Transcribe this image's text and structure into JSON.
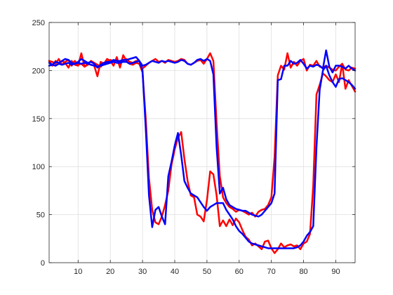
{
  "chart_data": {
    "type": "line",
    "title": "",
    "xlabel": "",
    "ylabel": "",
    "xlim": [
      1,
      96
    ],
    "ylim": [
      0,
      250
    ],
    "xticks": [
      10,
      20,
      30,
      40,
      50,
      60,
      70,
      80,
      90
    ],
    "yticks": [
      0,
      50,
      100,
      150,
      200,
      250
    ],
    "grid": true,
    "series": [
      {
        "color": "#ff0000",
        "x": [
          1,
          2,
          3,
          4,
          5,
          6,
          7,
          8,
          9,
          10,
          11,
          12,
          13,
          14,
          15,
          16,
          17,
          18,
          19,
          20,
          21,
          22,
          23,
          24,
          25,
          26,
          27,
          28,
          29,
          30,
          31,
          32,
          33,
          34,
          35,
          36,
          37,
          38,
          39,
          40,
          41,
          42,
          43,
          44,
          45,
          46,
          47,
          48,
          49,
          50,
          51,
          52,
          53,
          54,
          55,
          56,
          57,
          58,
          59,
          60,
          61,
          62,
          63,
          64,
          65,
          66,
          67,
          68,
          69,
          70,
          71,
          72,
          73,
          74,
          75,
          76,
          77,
          78,
          79,
          80,
          81,
          82,
          83,
          84,
          85,
          86,
          87,
          88,
          89,
          90,
          91,
          92,
          93,
          94,
          95,
          96
        ],
        "y": [
          210,
          205,
          210,
          207,
          210,
          208,
          203,
          210,
          206,
          205,
          218,
          204,
          207,
          206,
          205,
          194,
          209,
          207,
          212,
          210,
          205,
          214,
          203,
          216,
          210,
          207,
          206,
          208,
          207,
          198,
          150,
          88,
          55,
          42,
          40,
          48,
          60,
          75,
          102,
          118,
          130,
          136,
          108,
          85,
          70,
          68,
          50,
          48,
          43,
          65,
          95,
          92,
          70,
          38,
          44,
          38,
          45,
          39,
          46,
          42,
          34,
          27,
          24,
          18,
          20,
          17,
          14,
          22,
          23,
          15,
          10,
          14,
          20,
          16,
          18,
          19,
          17,
          18,
          14,
          20,
          22,
          30,
          80,
          175,
          185,
          197,
          194,
          190,
          188,
          196,
          188,
          207,
          181,
          190,
          184,
          178
        ]
      },
      {
        "color": "#ff0000",
        "x": [
          1,
          2,
          3,
          4,
          5,
          6,
          7,
          8,
          9,
          10,
          11,
          12,
          13,
          14,
          15,
          16,
          17,
          18,
          19,
          20,
          21,
          22,
          23,
          24,
          25,
          26,
          27,
          28,
          29,
          30,
          31,
          32,
          33,
          34,
          35,
          36,
          37,
          38,
          39,
          40,
          41,
          42,
          43,
          44,
          45,
          46,
          47,
          48,
          49,
          50,
          51,
          52,
          53,
          54,
          55,
          56,
          57,
          58,
          59,
          60,
          61,
          62,
          63,
          64,
          65,
          66,
          67,
          68,
          69,
          70,
          71,
          72,
          73,
          74,
          75,
          76,
          77,
          78,
          79,
          80,
          81,
          82,
          83,
          84,
          85,
          86,
          87,
          88,
          89,
          90,
          91,
          92,
          93,
          94,
          95,
          96
        ],
        "y": [
          210,
          209,
          207,
          212,
          206,
          209,
          211,
          205,
          210,
          206,
          207,
          204,
          206,
          210,
          208,
          206,
          204,
          207,
          209,
          211,
          210,
          211,
          209,
          210,
          212,
          209,
          208,
          210,
          210,
          202,
          205,
          208,
          210,
          212,
          209,
          210,
          208,
          211,
          210,
          209,
          210,
          212,
          211,
          207,
          206,
          208,
          210,
          211,
          207,
          212,
          218,
          210,
          145,
          90,
          68,
          62,
          58,
          56,
          53,
          55,
          54,
          52,
          50,
          52,
          48,
          53,
          55,
          56,
          60,
          68,
          110,
          195,
          205,
          201,
          218,
          203,
          209,
          205,
          210,
          212,
          200,
          206,
          205,
          210,
          204,
          203,
          205,
          203,
          201,
          200,
          204,
          207,
          201,
          200,
          203,
          202
        ]
      },
      {
        "color": "#0000ff",
        "x": [
          1,
          2,
          3,
          4,
          5,
          6,
          7,
          8,
          9,
          10,
          11,
          12,
          13,
          14,
          15,
          16,
          17,
          18,
          19,
          20,
          21,
          22,
          23,
          24,
          25,
          26,
          27,
          28,
          29,
          30,
          31,
          32,
          33,
          34,
          35,
          36,
          37,
          38,
          39,
          40,
          41,
          42,
          43,
          44,
          45,
          46,
          47,
          48,
          49,
          50,
          51,
          52,
          53,
          54,
          55,
          56,
          57,
          58,
          59,
          60,
          61,
          62,
          63,
          64,
          65,
          66,
          67,
          68,
          69,
          70,
          71,
          72,
          73,
          74,
          75,
          76,
          77,
          78,
          79,
          80,
          81,
          82,
          83,
          84,
          85,
          86,
          87,
          88,
          89,
          90,
          91,
          92,
          93,
          94,
          95,
          96
        ],
        "y": [
          208,
          206,
          209,
          208,
          210,
          212,
          211,
          208,
          207,
          209,
          212,
          210,
          208,
          209,
          207,
          203,
          206,
          208,
          209,
          209,
          211,
          210,
          210,
          211,
          211,
          212,
          213,
          214,
          210,
          200,
          140,
          70,
          37,
          55,
          58,
          48,
          40,
          90,
          105,
          122,
          135,
          112,
          85,
          78,
          72,
          70,
          68,
          63,
          58,
          54,
          58,
          60,
          62,
          62,
          62,
          55,
          50,
          45,
          38,
          33,
          30,
          26,
          22,
          20,
          19,
          18,
          17,
          16,
          15,
          15,
          15,
          15,
          15,
          15,
          15,
          15,
          15,
          16,
          18,
          22,
          28,
          32,
          38,
          120,
          180,
          200,
          205,
          195,
          188,
          183,
          191,
          192,
          190,
          188,
          185,
          181
        ]
      },
      {
        "color": "#0000ff",
        "x": [
          1,
          2,
          3,
          4,
          5,
          6,
          7,
          8,
          9,
          10,
          11,
          12,
          13,
          14,
          15,
          16,
          17,
          18,
          19,
          20,
          21,
          22,
          23,
          24,
          25,
          26,
          27,
          28,
          29,
          30,
          31,
          32,
          33,
          34,
          35,
          36,
          37,
          38,
          39,
          40,
          41,
          42,
          43,
          44,
          45,
          46,
          47,
          48,
          49,
          50,
          51,
          52,
          53,
          54,
          55,
          56,
          57,
          58,
          59,
          60,
          61,
          62,
          63,
          64,
          65,
          66,
          67,
          68,
          69,
          70,
          71,
          72,
          73,
          74,
          75,
          76,
          77,
          78,
          79,
          80,
          81,
          82,
          83,
          84,
          85,
          86,
          87,
          88,
          89,
          90,
          91,
          92,
          93,
          94,
          95,
          96
        ],
        "y": [
          205,
          206,
          205,
          207,
          206,
          207,
          208,
          206,
          207,
          208,
          207,
          208,
          207,
          206,
          205,
          204,
          205,
          206,
          207,
          208,
          209,
          208,
          208,
          209,
          209,
          207,
          208,
          209,
          210,
          205,
          206,
          208,
          210,
          209,
          208,
          210,
          209,
          210,
          209,
          208,
          209,
          211,
          210,
          207,
          206,
          208,
          211,
          212,
          210,
          212,
          210,
          196,
          120,
          72,
          78,
          66,
          60,
          58,
          56,
          55,
          54,
          54,
          52,
          50,
          49,
          48,
          50,
          54,
          58,
          62,
          72,
          190,
          191,
          205,
          205,
          210,
          207,
          208,
          211,
          207,
          202,
          205,
          204,
          206,
          205,
          202,
          221,
          204,
          198,
          205,
          205,
          204,
          202,
          205,
          202,
          200
        ]
      }
    ]
  }
}
